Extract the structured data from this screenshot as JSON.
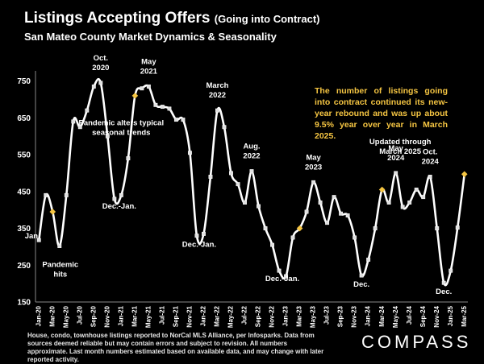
{
  "header": {
    "title_main": "Listings Accepting Offers",
    "title_paren": "(Going into Contract)",
    "subtitle": "San Mateo County Market Dynamics & Seasonality"
  },
  "callout": "The number of listings going into contract continued its new-year rebound and was up about 9.5% year over year in March 2025.",
  "footer": "House, condo, townhouse listings reported to NorCal MLS Alliance, per Infosparks. Data from sources deemed reliable but may contain errors and subject to revision. All numbers approximate. Last month numbers estimated based on available data, and may change with later reported activity.",
  "logo": "COMPASS",
  "colors": {
    "line": "#ffffff",
    "point": "#e0e0e0",
    "highlight": "#f5c542",
    "background": "#000000"
  },
  "chart_data": {
    "type": "line",
    "title": "Listings Accepting Offers (Going into Contract)",
    "subtitle": "San Mateo County Market Dynamics & Seasonality",
    "xlabel": "",
    "ylabel": "",
    "ylim": [
      150,
      760
    ],
    "yticks": [
      150,
      250,
      350,
      450,
      550,
      650,
      750
    ],
    "grid": false,
    "x": [
      "Jan-20",
      "Feb-20",
      "Mar-20",
      "Apr-20",
      "May-20",
      "Jun-20",
      "Jul-20",
      "Aug-20",
      "Sep-20",
      "Oct-20",
      "Nov-20",
      "Dec-20",
      "Jan-21",
      "Feb-21",
      "Mar-21",
      "Apr-21",
      "May-21",
      "Jun-21",
      "Jul-21",
      "Aug-21",
      "Sep-21",
      "Oct-21",
      "Nov-21",
      "Dec-21",
      "Jan-22",
      "Feb-22",
      "Mar-22",
      "Apr-22",
      "May-22",
      "Jun-22",
      "Jul-22",
      "Aug-22",
      "Sep-22",
      "Oct-22",
      "Nov-22",
      "Dec-22",
      "Jan-23",
      "Feb-23",
      "Mar-23",
      "Apr-23",
      "May-23",
      "Jun-23",
      "Jul-23",
      "Aug-23",
      "Sep-23",
      "Oct-23",
      "Nov-23",
      "Dec-23",
      "Jan-24",
      "Feb-24",
      "Mar-24",
      "Apr-24",
      "May-24",
      "Jun-24",
      "Jul-24",
      "Aug-24",
      "Sep-24",
      "Oct-24",
      "Nov-24",
      "Dec-24",
      "Jan-25",
      "Feb-25",
      "Mar-25"
    ],
    "xtick_labels": [
      "Jan-20",
      "Mar-20",
      "May-20",
      "Jul-20",
      "Sep-20",
      "Nov-20",
      "Jan-21",
      "Mar-21",
      "May-21",
      "Jul-21",
      "Sep-21",
      "Nov-21",
      "Jan-22",
      "Mar-22",
      "May-22",
      "Jul-22",
      "Sep-22",
      "Nov-22",
      "Jan-23",
      "Mar-23",
      "May-23",
      "Jul-23",
      "Sep-23",
      "Nov-23",
      "Jan-24",
      "Mar-24",
      "May-24",
      "Jul-24",
      "Sep-24",
      "Nov-24",
      "Jan-25",
      "Mar-25"
    ],
    "series": [
      {
        "values": [
          318,
          440,
          395,
          302,
          440,
          640,
          625,
          670,
          735,
          745,
          600,
          430,
          440,
          540,
          710,
          730,
          735,
          685,
          680,
          675,
          645,
          645,
          555,
          330,
          335,
          490,
          670,
          625,
          500,
          470,
          420,
          505,
          410,
          350,
          305,
          235,
          220,
          325,
          350,
          395,
          475,
          420,
          365,
          435,
          390,
          385,
          325,
          222,
          265,
          350,
          455,
          420,
          500,
          408,
          420,
          455,
          435,
          490,
          350,
          202,
          235,
          352,
          497
        ],
        "highlight_points": [
          2,
          14,
          38,
          50,
          62
        ]
      }
    ],
    "annotations": [
      {
        "text": "Oct.",
        "at": "Oct-20",
        "pos": "above"
      },
      {
        "text": "2020",
        "at": "Oct-20",
        "pos": "above"
      },
      {
        "text": "May",
        "at": "May-21",
        "pos": "above"
      },
      {
        "text": "2021",
        "at": "May-21",
        "pos": "above"
      },
      {
        "text": "March",
        "at": "Mar-22",
        "pos": "above"
      },
      {
        "text": "2022",
        "at": "Mar-22",
        "pos": "above"
      },
      {
        "text": "Aug.",
        "at": "Aug-22",
        "pos": "above"
      },
      {
        "text": "2022",
        "at": "Aug-22",
        "pos": "above"
      },
      {
        "text": "May",
        "at": "May-23",
        "pos": "above"
      },
      {
        "text": "2023",
        "at": "May-23",
        "pos": "above"
      },
      {
        "text": "May",
        "at": "May-24",
        "pos": "above"
      },
      {
        "text": "2024",
        "at": "May-24",
        "pos": "above"
      },
      {
        "text": "Oct.",
        "at": "Oct-24",
        "pos": "above"
      },
      {
        "text": "2024",
        "at": "Oct-24",
        "pos": "above"
      },
      {
        "text": "Pandemic alters typical",
        "at": "Jul-20",
        "pos": "right"
      },
      {
        "text": "seasonal trends",
        "at": "Jul-20",
        "pos": "right"
      },
      {
        "text": "Jan.",
        "at": "Jan-20",
        "pos": "below"
      },
      {
        "text": "Pandemic",
        "at": "Apr-20",
        "pos": "below"
      },
      {
        "text": "hits",
        "at": "Apr-20",
        "pos": "below"
      },
      {
        "text": "Dec.-Jan.",
        "at": "Dec-20",
        "pos": "below"
      },
      {
        "text": "Dec.-Jan.",
        "at": "Dec-21",
        "pos": "below"
      },
      {
        "text": "Dec.-Jan.",
        "at": "Dec-22",
        "pos": "below"
      },
      {
        "text": "Dec.",
        "at": "Dec-23",
        "pos": "below"
      },
      {
        "text": "Dec.",
        "at": "Dec-24",
        "pos": "below"
      },
      {
        "text": "Updated through",
        "at": "Jun-24",
        "pos": "below"
      },
      {
        "text": "March 2025",
        "at": "Jun-24",
        "pos": "below"
      }
    ]
  }
}
